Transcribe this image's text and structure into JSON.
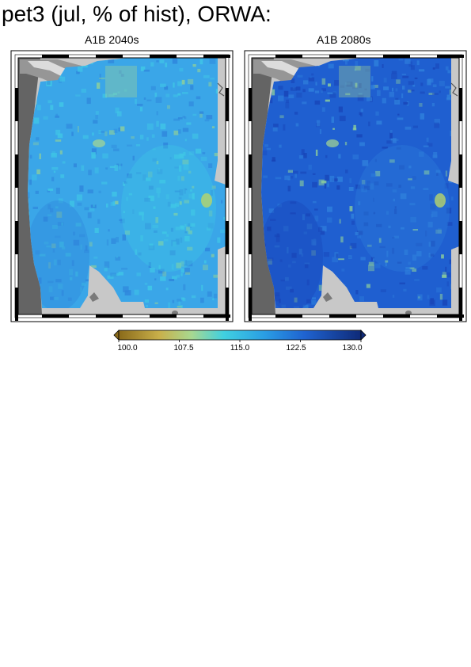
{
  "title": "pet3 (jul, % of hist), ORWA:",
  "panels": [
    {
      "label": "A1B 2040s",
      "fill_base": "#3aa6e8",
      "fill_light": "#40c8e6",
      "fill_dark": "#2f86dc"
    },
    {
      "label": "A1B 2080s",
      "fill_base": "#1f5fd0",
      "fill_light": "#2f80dc",
      "fill_dark": "#1845b8"
    }
  ],
  "colorbar": {
    "min": 100.0,
    "max": 130.0,
    "ticks": [
      "100.0",
      "107.5",
      "115.0",
      "122.5",
      "130.0"
    ],
    "stops": [
      {
        "value": 100.0,
        "color": "#8a6a1a"
      },
      {
        "value": 105.0,
        "color": "#c9b04a"
      },
      {
        "value": 109.0,
        "color": "#a8d890"
      },
      {
        "value": 113.0,
        "color": "#40d0e0"
      },
      {
        "value": 118.0,
        "color": "#2a9ee4"
      },
      {
        "value": 123.0,
        "color": "#1f63d0"
      },
      {
        "value": 130.0,
        "color": "#0f2a78"
      }
    ]
  },
  "colors": {
    "ocean": "#646464",
    "land_outside": "#c8c8c8",
    "water": "#969696",
    "frame": "#000000"
  }
}
